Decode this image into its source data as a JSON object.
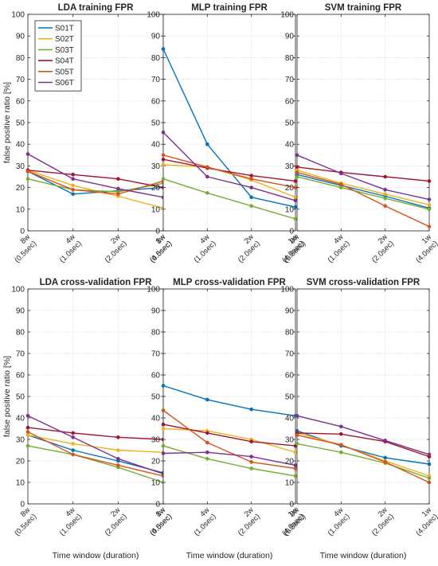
{
  "chart_data": [
    {
      "type": "line",
      "title": "LDA training FPR",
      "xlabel": "",
      "ylabel": "false positive ratio [%]",
      "ylim": [
        0,
        100
      ],
      "x": [
        "8w (0.5sec)",
        "4w (1.0sec)",
        "2w (2.0sec)",
        "1w (4.0sec)"
      ],
      "series": [
        {
          "name": "S01T",
          "values": [
            27.5,
            17,
            18.5,
            20
          ]
        },
        {
          "name": "S02T",
          "values": [
            28,
            21,
            16,
            10.5
          ]
        },
        {
          "name": "S03T",
          "values": [
            24,
            19,
            18,
            22
          ]
        },
        {
          "name": "S04T",
          "values": [
            28,
            26,
            24,
            20
          ]
        },
        {
          "name": "S05T",
          "values": [
            27.5,
            19,
            17,
            23
          ]
        },
        {
          "name": "S06T",
          "values": [
            35.5,
            24,
            19.5,
            15.5
          ]
        }
      ],
      "legend": "top-left"
    },
    {
      "type": "line",
      "title": "MLP training FPR",
      "xlabel": "",
      "ylabel": "",
      "ylim": [
        0,
        100
      ],
      "x": [
        "8w (0.5sec)",
        "4w (1.0sec)",
        "2w (2.0sec)",
        "1w (4.0sec)"
      ],
      "series": [
        {
          "name": "S01T",
          "values": [
            84,
            40,
            15.5,
            11
          ]
        },
        {
          "name": "S02T",
          "values": [
            30.5,
            29.5,
            23.5,
            15.5
          ]
        },
        {
          "name": "S03T",
          "values": [
            24,
            17.5,
            11.5,
            5.5
          ]
        },
        {
          "name": "S04T",
          "values": [
            33,
            29,
            25.5,
            23
          ]
        },
        {
          "name": "S05T",
          "values": [
            35,
            29.5,
            24,
            20
          ]
        },
        {
          "name": "S06T",
          "values": [
            45.5,
            25,
            20,
            14
          ]
        }
      ]
    },
    {
      "type": "line",
      "title": "SVM  training FPR",
      "xlabel": "",
      "ylabel": "",
      "ylim": [
        0,
        100
      ],
      "x": [
        "8w (0.5sec)",
        "4w (1.0sec)",
        "2w (2.0sec)",
        "1w (4.0sec)"
      ],
      "series": [
        {
          "name": "S01T",
          "values": [
            26,
            21,
            16,
            10.5
          ]
        },
        {
          "name": "S02T",
          "values": [
            28,
            22,
            17,
            12
          ]
        },
        {
          "name": "S03T",
          "values": [
            25,
            20,
            15,
            10
          ]
        },
        {
          "name": "S04T",
          "values": [
            29.5,
            27,
            25,
            23
          ]
        },
        {
          "name": "S05T",
          "values": [
            27,
            21.5,
            11.5,
            2
          ]
        },
        {
          "name": "S06T",
          "values": [
            35,
            26.5,
            19,
            14.5
          ]
        }
      ]
    },
    {
      "type": "line",
      "title": "LDA cross-validation FPR",
      "xlabel": "Time window (duration)",
      "ylabel": "false positive ratio [%]",
      "ylim": [
        0,
        100
      ],
      "x": [
        "8w (0.5sec)",
        "4w (1.0sec)",
        "2w (2.0sec)",
        "1w (4.0sec)"
      ],
      "series": [
        {
          "name": "S01T",
          "values": [
            32,
            25,
            20,
            14.5
          ]
        },
        {
          "name": "S02T",
          "values": [
            32,
            28,
            25,
            24
          ]
        },
        {
          "name": "S03T",
          "values": [
            27,
            23,
            17,
            10
          ]
        },
        {
          "name": "S04T",
          "values": [
            35.5,
            33,
            31,
            30
          ]
        },
        {
          "name": "S05T",
          "values": [
            33.5,
            23,
            18,
            13
          ]
        },
        {
          "name": "S06T",
          "values": [
            41,
            31,
            21,
            14
          ]
        }
      ]
    },
    {
      "type": "line",
      "title": "MLP cross-validation FPR",
      "xlabel": "Time window (duration)",
      "ylabel": "",
      "ylim": [
        0,
        100
      ],
      "x": [
        "8w (0.5sec)",
        "4w (1.0sec)",
        "2w (2.0sec)",
        "1w (4.0sec)"
      ],
      "series": [
        {
          "name": "S01T",
          "values": [
            55,
            48.5,
            44,
            41
          ]
        },
        {
          "name": "S02T",
          "values": [
            35,
            34,
            30,
            24
          ]
        },
        {
          "name": "S03T",
          "values": [
            27,
            21,
            16.5,
            13
          ]
        },
        {
          "name": "S04T",
          "values": [
            37,
            33,
            29,
            27
          ]
        },
        {
          "name": "S05T",
          "values": [
            43.5,
            28.5,
            19.5,
            16.5
          ]
        },
        {
          "name": "S06T",
          "values": [
            23.5,
            24,
            22,
            18
          ]
        }
      ]
    },
    {
      "type": "line",
      "title": "SVM cross-validation FPR",
      "xlabel": "Time window (duration)",
      "ylabel": "",
      "ylim": [
        0,
        100
      ],
      "x": [
        "8w (0.5sec)",
        "4w (1.0sec)",
        "2w (2.0sec)",
        "1w (4.0sec)"
      ],
      "series": [
        {
          "name": "S01T",
          "values": [
            34,
            27,
            21.5,
            18.5
          ]
        },
        {
          "name": "S02T",
          "values": [
            33,
            27.5,
            20,
            13
          ]
        },
        {
          "name": "S03T",
          "values": [
            28,
            24,
            19,
            12
          ]
        },
        {
          "name": "S04T",
          "values": [
            33,
            32.5,
            29,
            22
          ]
        },
        {
          "name": "S05T",
          "values": [
            32,
            27.5,
            19.5,
            10
          ]
        },
        {
          "name": "S06T",
          "values": [
            41,
            36,
            29.5,
            23
          ]
        }
      ]
    }
  ],
  "colors": {
    "S01T": "#0072BD",
    "S02T": "#EDB120",
    "S03T": "#77AC30",
    "S04T": "#A2142F",
    "S05T": "#D95319",
    "S06T": "#7E2F8E"
  },
  "ytick_labels": [
    "0",
    "10",
    "20",
    "30",
    "40",
    "50",
    "60",
    "70",
    "80",
    "90",
    "100"
  ],
  "grid": true
}
